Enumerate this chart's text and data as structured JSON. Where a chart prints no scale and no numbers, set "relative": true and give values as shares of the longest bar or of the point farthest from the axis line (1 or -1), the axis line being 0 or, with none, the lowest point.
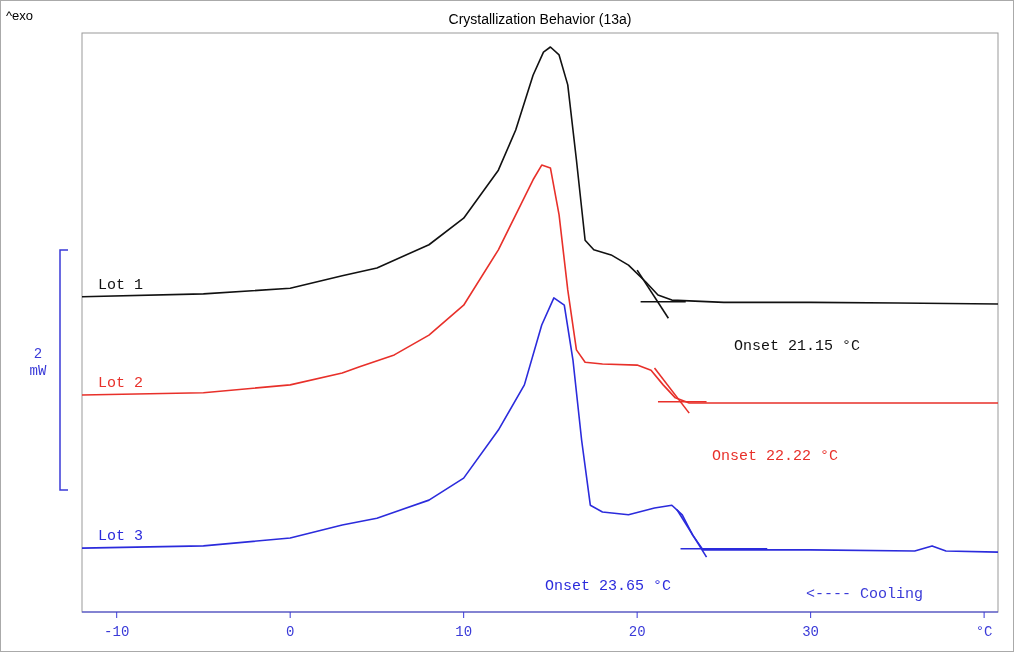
{
  "chart_data": {
    "type": "line",
    "title": "Crystallization Behavior (13a)",
    "relative": true,
    "grid": false,
    "xlim": [
      -12,
      40.8
    ],
    "xticks": [
      -10,
      0,
      10,
      20,
      30,
      {
        "value": 40,
        "label": "°C"
      }
    ],
    "tick_labels": "x",
    "series": [
      {
        "name": "Lot 1",
        "color": "#111111",
        "x": [
          -12,
          -5,
          0,
          3,
          5,
          8,
          10,
          12,
          13,
          14,
          14.6,
          15,
          15.5,
          16,
          16.5,
          17,
          17.5,
          18.5,
          19.5,
          20.5,
          21.2,
          22,
          25,
          30,
          35,
          40.8
        ],
        "values": [
          0.558,
          0.563,
          0.573,
          0.595,
          0.609,
          0.65,
          0.697,
          0.782,
          0.853,
          0.95,
          0.991,
          1,
          0.986,
          0.933,
          0.8,
          0.658,
          0.641,
          0.632,
          0.614,
          0.584,
          0.561,
          0.552,
          0.548,
          0.548,
          0.547,
          0.545
        ]
      },
      {
        "name": "Lot 2",
        "color": "#e8302a",
        "x": [
          -12,
          -5,
          0,
          3,
          4,
          6,
          8,
          10,
          12,
          13,
          14,
          14.5,
          15,
          15.5,
          16,
          16.5,
          17,
          18,
          20,
          20.8,
          21.5,
          22.2,
          23,
          30,
          40.8
        ],
        "values": [
          0.384,
          0.388,
          0.402,
          0.423,
          0.434,
          0.455,
          0.49,
          0.543,
          0.641,
          0.703,
          0.765,
          0.791,
          0.786,
          0.703,
          0.57,
          0.464,
          0.442,
          0.439,
          0.437,
          0.428,
          0.402,
          0.379,
          0.37,
          0.37,
          0.37
        ]
      },
      {
        "name": "Lot 3",
        "color": "#2b2bdc",
        "x": [
          -12,
          -5,
          0,
          3,
          5,
          8,
          10,
          12,
          13.5,
          14.5,
          15.2,
          15.8,
          16.3,
          16.8,
          17.3,
          18,
          19.5,
          21,
          22,
          22.6,
          23.2,
          23.8,
          25,
          30,
          36,
          37,
          37.8,
          40.8
        ],
        "values": [
          0.113,
          0.117,
          0.131,
          0.154,
          0.166,
          0.198,
          0.237,
          0.322,
          0.402,
          0.508,
          0.556,
          0.543,
          0.446,
          0.304,
          0.189,
          0.177,
          0.172,
          0.184,
          0.189,
          0.172,
          0.136,
          0.11,
          0.11,
          0.11,
          0.108,
          0.117,
          0.108,
          0.106
        ]
      },
      {
        "color": "#111111",
        "x": [
          20,
          21.8
        ],
        "values": [
          0.605,
          0.52
        ]
      },
      {
        "color": "#111111",
        "x": [
          20.2,
          22.8
        ],
        "values": [
          0.549,
          0.549
        ]
      },
      {
        "color": "#e8302a",
        "x": [
          21,
          23
        ],
        "values": [
          0.432,
          0.352
        ]
      },
      {
        "color": "#e8302a",
        "x": [
          21.2,
          24
        ],
        "values": [
          0.372,
          0.372
        ]
      },
      {
        "color": "#2b2bdc",
        "x": [
          22.3,
          24
        ],
        "values": [
          0.181,
          0.097
        ]
      },
      {
        "color": "#2b2bdc",
        "x": [
          22.5,
          27.5
        ],
        "values": [
          0.112,
          0.112
        ]
      }
    ],
    "annotations": [
      "^exo",
      "2 mW",
      "<---- Cooling",
      "Onset 21.15 °C",
      "Onset 22.22 °C",
      "Onset 23.65 °C"
    ]
  }
}
